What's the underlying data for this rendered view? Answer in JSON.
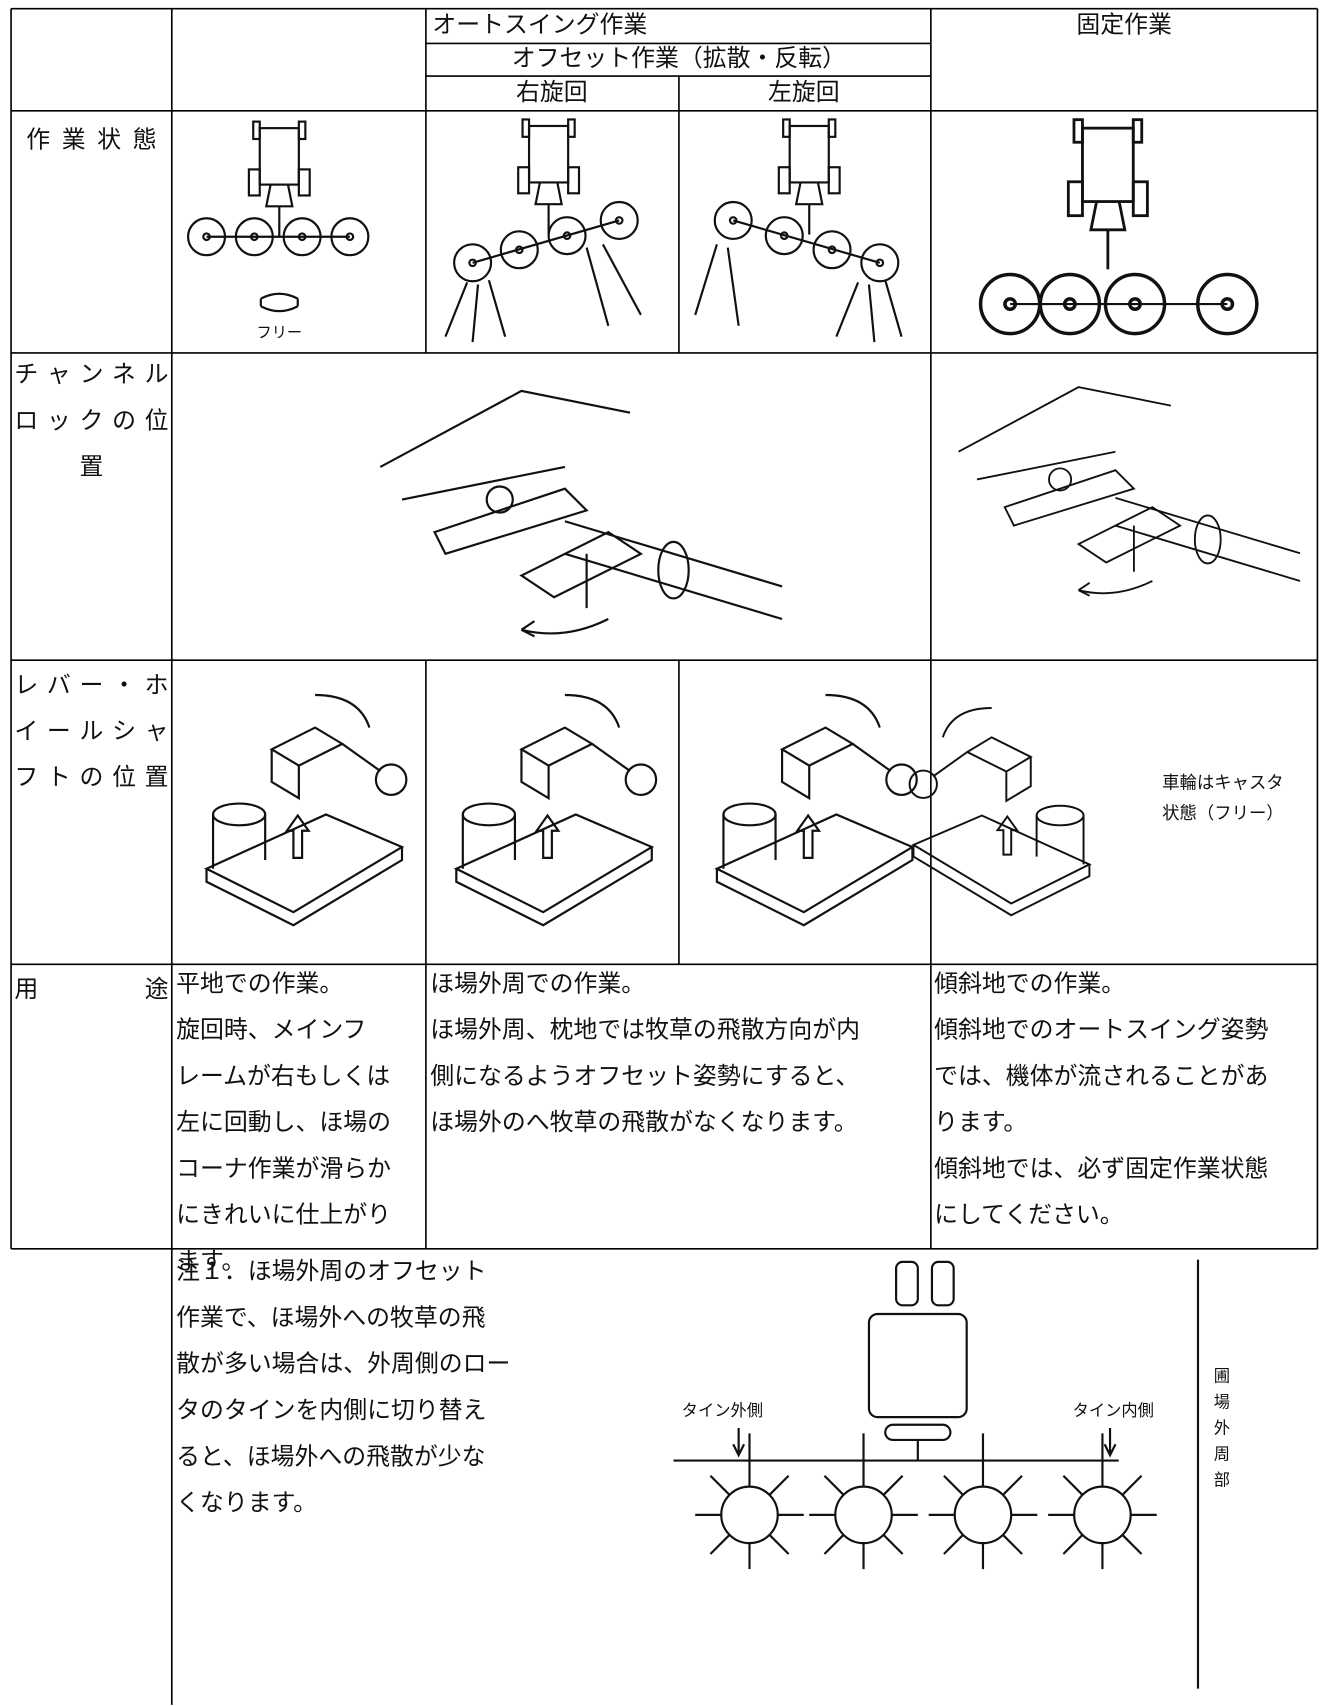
{
  "header": {
    "auto_swing": "オートスイング作業",
    "offset": "オフセット作業（拡散・反転）",
    "right_turn": "右旋回",
    "left_turn": "左旋回",
    "fixed": "固定作業"
  },
  "row_labels": [
    [
      "作業状態"
    ],
    [
      "チャンネル",
      "ロックの位",
      "置"
    ],
    [
      "レバー・ホ",
      "イールシャ",
      "フトの位置"
    ],
    [
      "用　　　途"
    ]
  ],
  "illustration_labels": {
    "free": "フリー",
    "caster": [
      "車輪はキャスタ",
      "状態（フリー）"
    ],
    "tine_outside": "タイン外側",
    "tine_inside": "タイン内側",
    "field_edge": [
      "圃",
      "場",
      "外",
      "周",
      "部"
    ]
  },
  "usage": [
    [
      "平地での作業。",
      "旋回時、メインフ",
      "レームが右もしくは",
      "左に回動し、ほ場の",
      "コーナ作業が滑らか",
      "にきれいに仕上がり",
      "ます。"
    ],
    [
      "ほ場外周での作業。",
      "ほ場外周、枕地では牧草の飛散方向が内",
      "側になるようオフセット姿勢にすると、",
      "ほ場外のへ牧草の飛散がなくなります。"
    ],
    [
      "傾斜地での作業。",
      "傾斜地でのオートスイング姿勢",
      "では、機体が流されることがあ",
      "ります。",
      "傾斜地では、必ず固定作業状態",
      "にしてください。"
    ]
  ],
  "note": [
    "注１．ほ場外周のオフセット",
    "作業で、ほ場外への牧草の飛",
    "散が多い場合は、外周側のロー",
    "タのタインを内側に切り替え",
    "ると、ほ場外への飛散が少な",
    "くなります。"
  ]
}
